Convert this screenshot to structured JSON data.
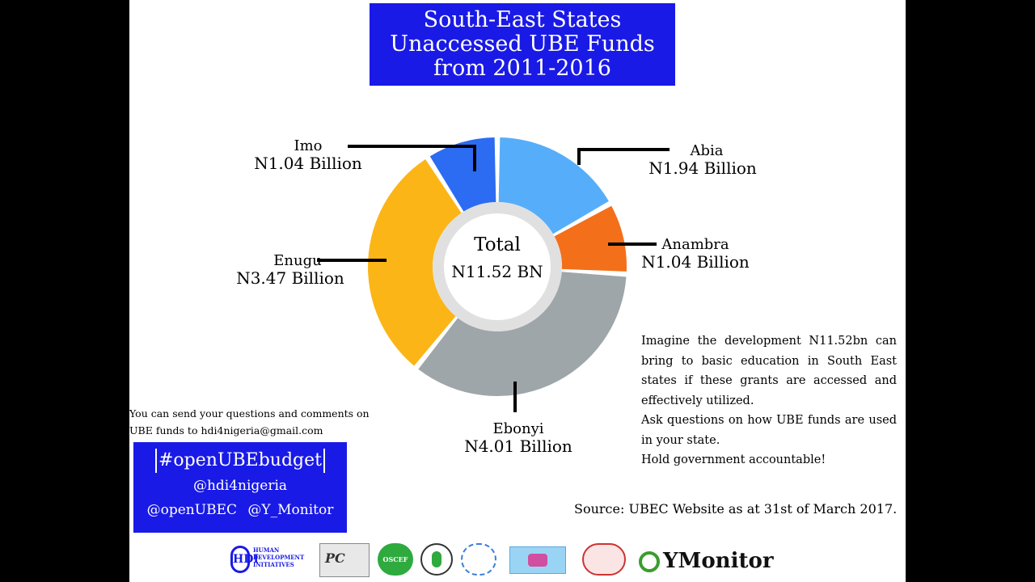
{
  "title_lines": [
    "South-East States",
    "Unaccessed UBE Funds",
    "from 2011-2016"
  ],
  "center": {
    "total_label": "Total",
    "total_value": "N11.52 BN"
  },
  "chart_data": {
    "type": "pie",
    "style": "donut",
    "title": "South-East States Unaccessed UBE Funds from 2011-2016",
    "unit": "Billion Naira",
    "total": 11.52,
    "slices": [
      {
        "state": "Abia",
        "value": 1.94,
        "label": "N1.94 Billion",
        "color": "#56aefa"
      },
      {
        "state": "Anambra",
        "value": 1.04,
        "label": "N1.04 Billion",
        "color": "#f46f1a"
      },
      {
        "state": "Ebonyi",
        "value": 4.01,
        "label": "N4.01 Billion",
        "color": "#9ea6a9"
      },
      {
        "state": "Enugu",
        "value": 3.47,
        "label": "N3.47 Billion",
        "color": "#fbb516"
      },
      {
        "state": "Imo",
        "value": 1.04,
        "label": "N1.04 Billion",
        "color": "#2c6cf2"
      }
    ]
  },
  "right_text": {
    "p1": "Imagine the development N11.52bn can bring to basic education in South East states if these grants are accessed and effectively utilized.",
    "p2": "Ask questions on how UBE funds are used in your state.",
    "p3": "Hold government accountable!"
  },
  "source": "Source: UBEC Website as at  31st of March 2017.",
  "contact": "You can send your questions and comments on UBE funds to hdi4nigeria@gmail.com",
  "social": {
    "hashtag": "#openUBEbudget",
    "handle1": "@hdi4nigeria",
    "handle2": "@openUBEC",
    "handle3": "@Y_Monitor"
  },
  "logos": {
    "hdi_mark": "HDI",
    "hdi_text_1": "HUMAN",
    "hdi_text_2": "DEVELOPMENT",
    "hdi_text_3": "INITIATIVES",
    "pc": "PC",
    "oscef": "OSCEF",
    "ymonitor": "YMonitor"
  },
  "colors": {
    "title_bg": "#1a1ae6",
    "social_bg": "#1a1ae6",
    "inner_ring": "#e0e0e0"
  }
}
